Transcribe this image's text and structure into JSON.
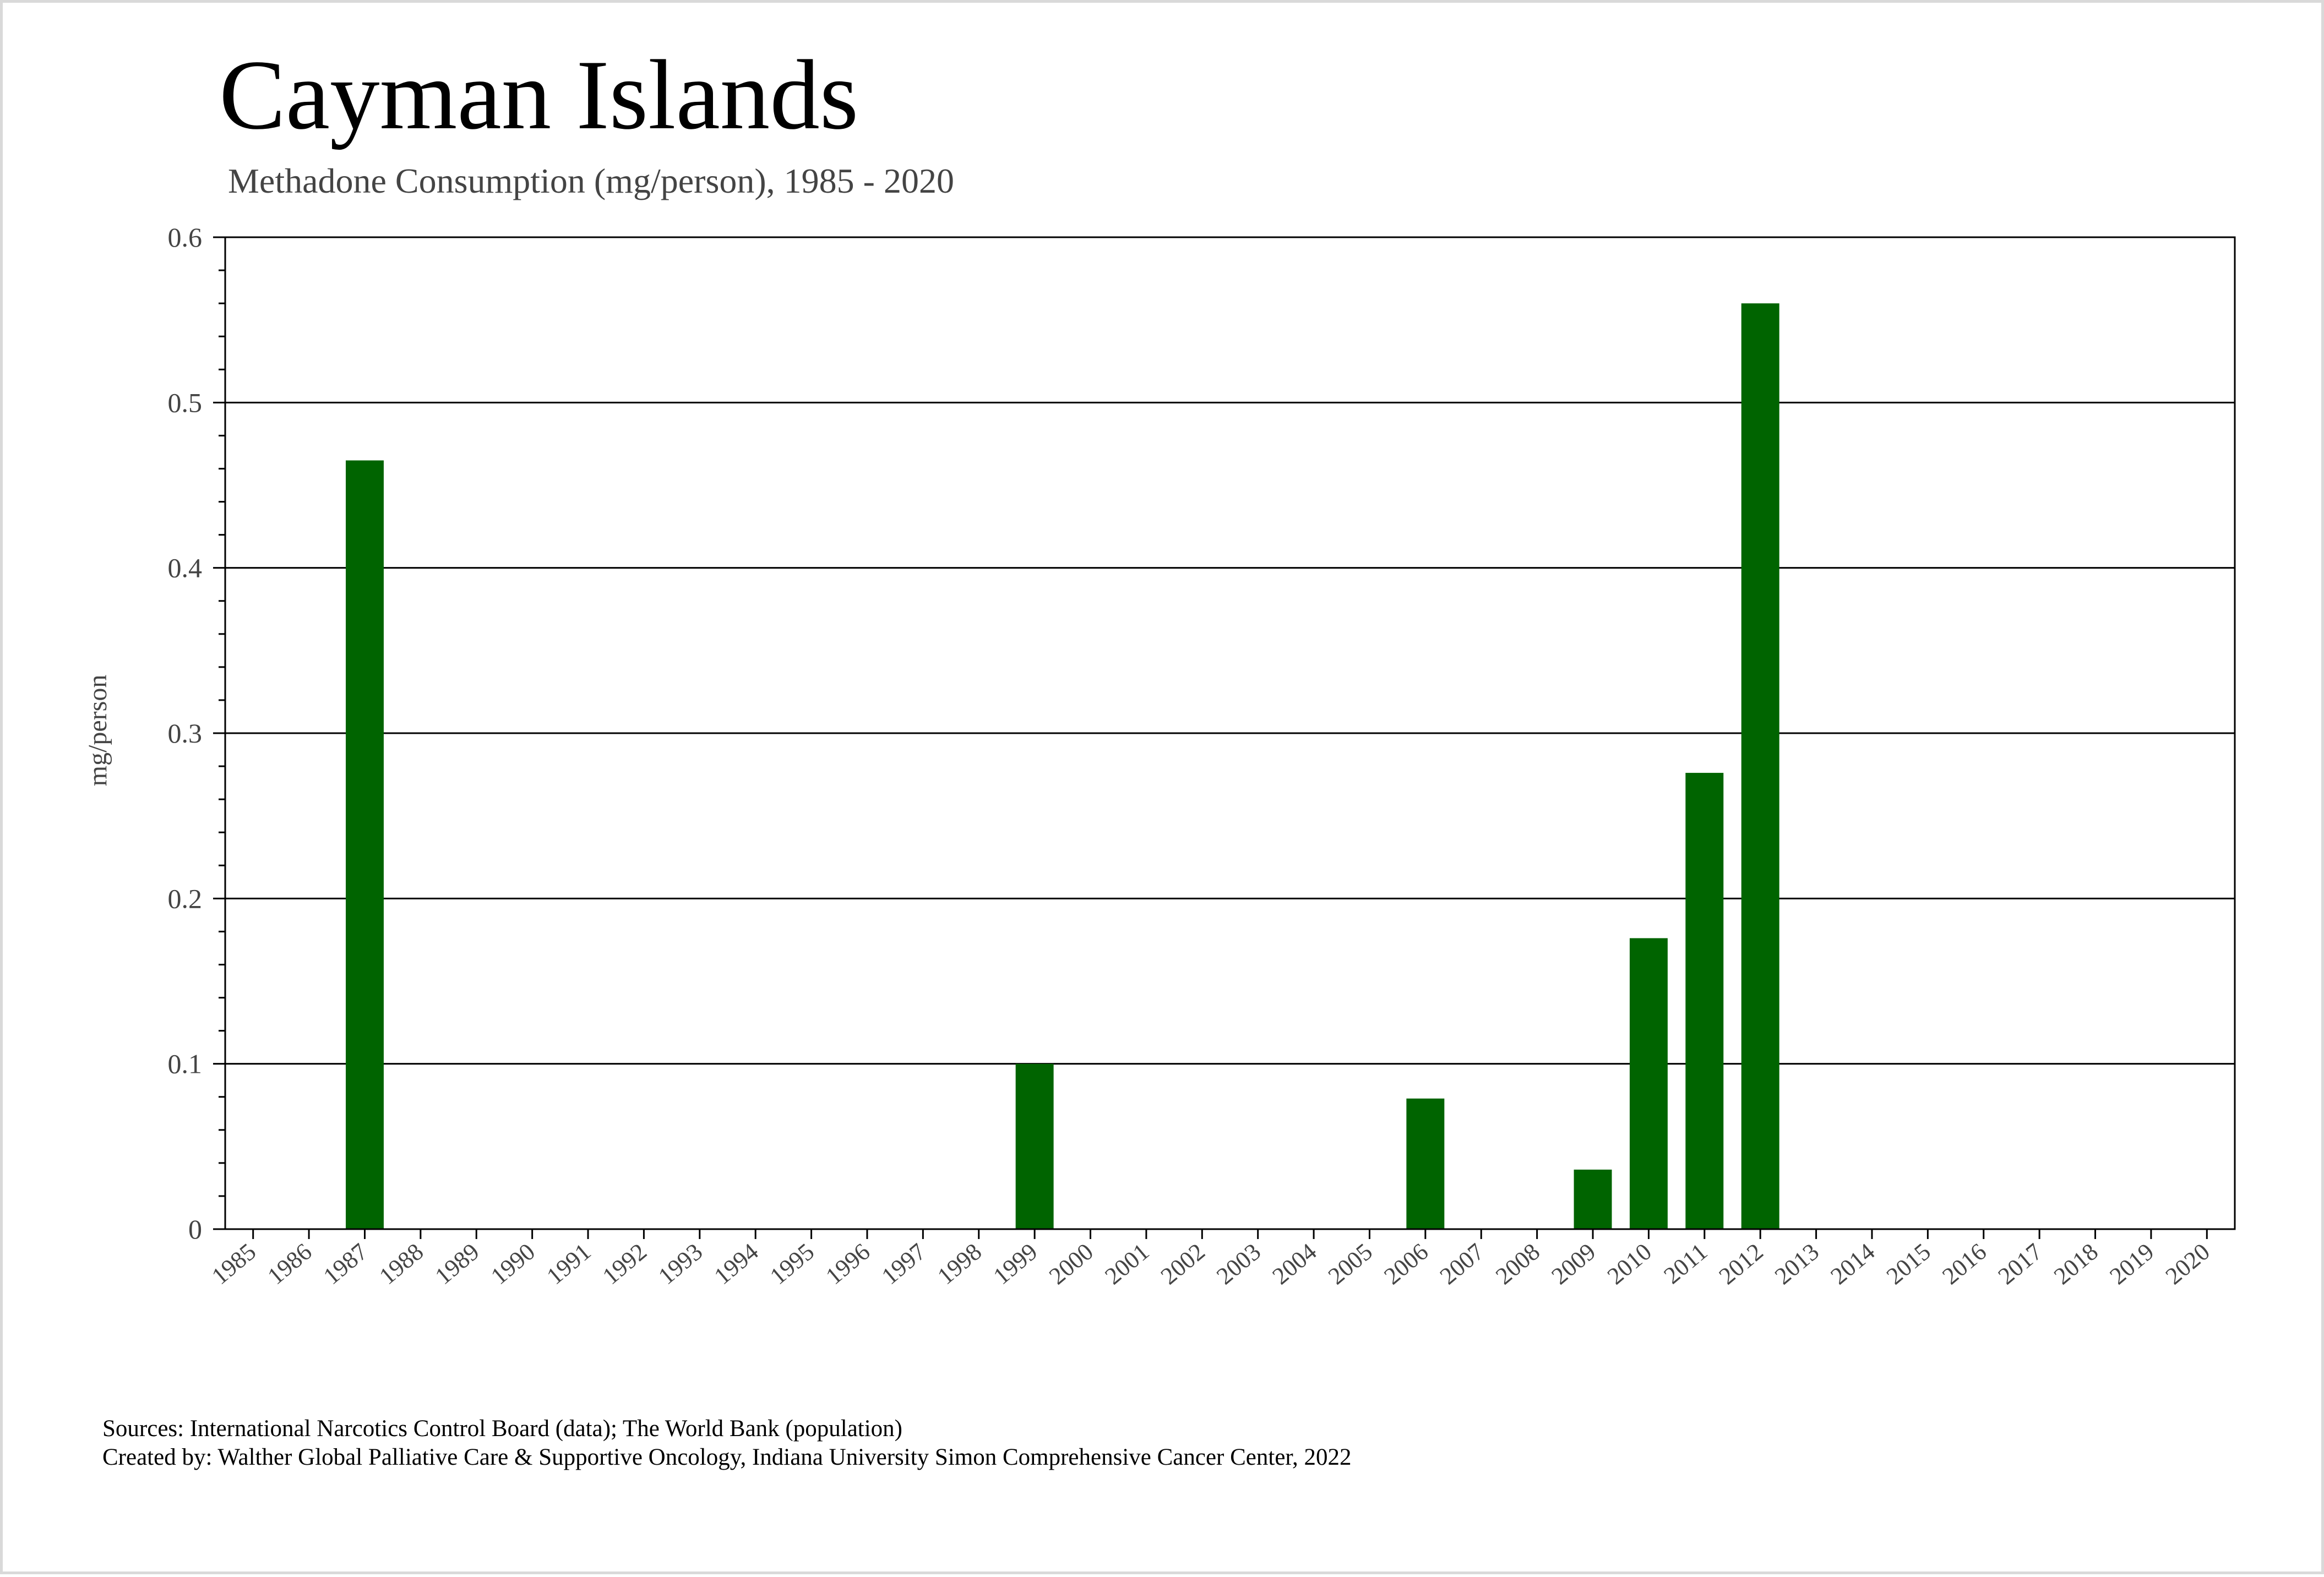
{
  "chart_data": {
    "type": "bar",
    "title": "Cayman Islands",
    "subtitle": "Methadone Consumption (mg/person), 1985 - 2020",
    "xlabel": "",
    "ylabel": "mg/person",
    "ylim": [
      0,
      0.6
    ],
    "yticks": [
      "0",
      "0.1",
      "0.2",
      "0.3",
      "0.4",
      "0.5",
      "0.6"
    ],
    "grid": true,
    "bar_color": "#006400",
    "categories": [
      "1985",
      "1986",
      "1987",
      "1988",
      "1989",
      "1990",
      "1991",
      "1992",
      "1993",
      "1994",
      "1995",
      "1996",
      "1997",
      "1998",
      "1999",
      "2000",
      "2001",
      "2002",
      "2003",
      "2004",
      "2005",
      "2006",
      "2007",
      "2008",
      "2009",
      "2010",
      "2011",
      "2012",
      "2013",
      "2014",
      "2015",
      "2016",
      "2017",
      "2018",
      "2019",
      "2020"
    ],
    "values": [
      0,
      0,
      0.465,
      0,
      0,
      0,
      0,
      0,
      0,
      0,
      0,
      0,
      0,
      0,
      0.1,
      0,
      0,
      0,
      0,
      0,
      0,
      0.079,
      0,
      0,
      0.036,
      0.176,
      0.276,
      0.56,
      0,
      0,
      0,
      0,
      0,
      0,
      0,
      0
    ]
  },
  "footer": {
    "sources": "Sources: International Narcotics Control Board (data); The World Bank (population)",
    "created_by": "Created by: Walther Global Palliative Care & Supportive Oncology, Indiana University Simon Comprehensive Cancer Center, 2022"
  }
}
